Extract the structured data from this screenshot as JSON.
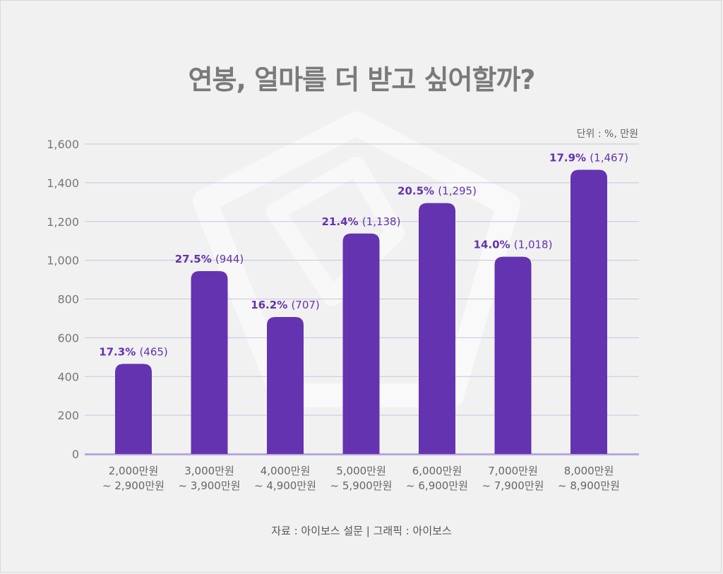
{
  "title": "연봉, 얼마를 더 받고 싶어할까?",
  "unit_note": "단위 : %, 만원",
  "source_note": "자료 : 아이보스 설문    |    그래픽 : 아이보스",
  "colors": {
    "bar": "#6433b0",
    "grid": "#c8c4e0",
    "axis": "#b9a9dd"
  },
  "chart_data": {
    "type": "bar",
    "title": "연봉, 얼마를 더 받고 싶어할까?",
    "ylim": [
      0,
      1600
    ],
    "yticks": [
      0,
      200,
      400,
      600,
      800,
      1000,
      1200,
      1400,
      1600
    ],
    "ytick_labels": [
      "0",
      "200",
      "400",
      "600",
      "800",
      "1,000",
      "1,200",
      "1,400",
      "1,600"
    ],
    "grid": true,
    "categories": [
      [
        "2,000만원",
        "~ 2,900만원"
      ],
      [
        "3,000만원",
        "~ 3,900만원"
      ],
      [
        "4,000만원",
        "~ 4,900만원"
      ],
      [
        "5,000만원",
        "~ 5,900만원"
      ],
      [
        "6,000만원",
        "~ 6,900만원"
      ],
      [
        "7,000만원",
        "~ 7,900만원"
      ],
      [
        "8,000만원",
        "~ 8,900만원"
      ]
    ],
    "values": [
      465,
      944,
      707,
      1138,
      1295,
      1018,
      1467
    ],
    "value_labels": [
      "(465)",
      "(944)",
      "(707)",
      "(1,138)",
      "(1,295)",
      "(1,018)",
      "(1,467)"
    ],
    "percent_labels": [
      "17.3%",
      "27.5%",
      "16.2%",
      "21.4%",
      "20.5%",
      "14.0%",
      "17.9%"
    ]
  }
}
